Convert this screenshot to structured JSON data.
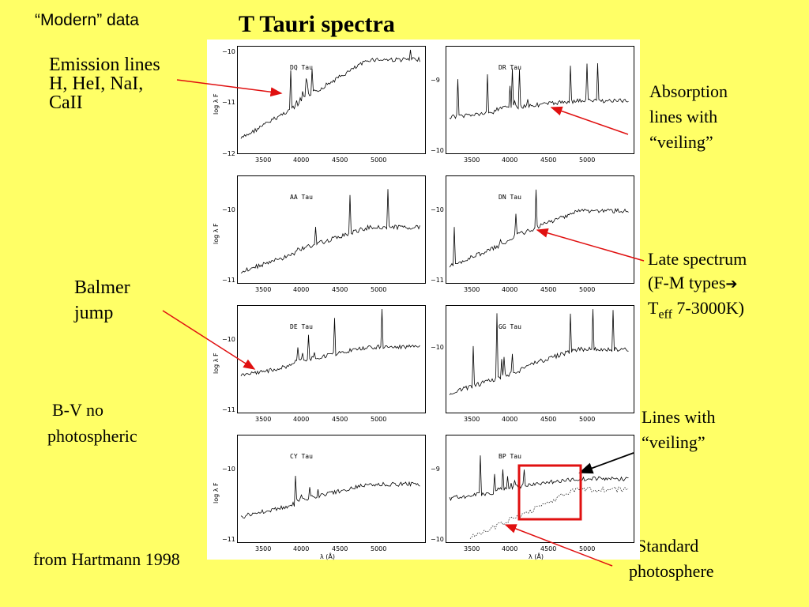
{
  "title": "T Tauri spectra",
  "modern_label": "“Modern” data",
  "annotations": {
    "emission": [
      "Emission lines",
      "H, HeI, NaI,",
      "CaII"
    ],
    "absorption": [
      "Absorption",
      "lines with",
      "“veiling”"
    ],
    "late_spectrum_line1": "Late spectrum",
    "late_spectrum_line2": "(F-M types",
    "late_spectrum_arrow": "➔",
    "late_spectrum_T": "T",
    "late_spectrum_sub": "eff",
    "late_spectrum_rest": " 7-3000K)",
    "balmer": [
      "Balmer",
      "jump"
    ],
    "bv": [
      "B-V no",
      "photospheric"
    ],
    "lines_veiling": [
      "Lines with",
      "“veiling”"
    ],
    "standard": [
      "Standard",
      "photosphere"
    ]
  },
  "citation": "from Hartmann 1998",
  "figure": {
    "x_ticks": [
      "3500",
      "4000",
      "4500",
      "5000"
    ],
    "x_axis_label": "λ (Å)",
    "y_axis_label": "log λ F",
    "panels": [
      {
        "star": "DQ Tau",
        "y_ticks": [
          "−10",
          "−11",
          "−12"
        ]
      },
      {
        "star": "DR Tau",
        "y_ticks": [
          "−9",
          "−10"
        ]
      },
      {
        "star": "AA Tau",
        "y_ticks": [
          "−10",
          "−11"
        ]
      },
      {
        "star": "DN Tau",
        "y_ticks": [
          "−10",
          "−11"
        ]
      },
      {
        "star": "DE Tau",
        "y_ticks": [
          "−10",
          "−11"
        ]
      },
      {
        "star": "GG Tau",
        "y_ticks": [
          "−10"
        ]
      },
      {
        "star": "CY Tau",
        "y_ticks": [
          "−10",
          "−11"
        ]
      },
      {
        "star": "BP Tau",
        "y_ticks": [
          "−9",
          "−10"
        ]
      }
    ]
  },
  "colors": {
    "background": "#ffff66",
    "arrow": "#e01010",
    "box": "#e01010"
  }
}
